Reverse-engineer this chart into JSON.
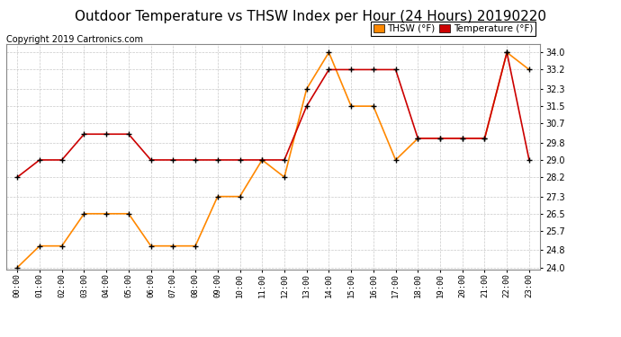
{
  "title": "Outdoor Temperature vs THSW Index per Hour (24 Hours) 20190220",
  "copyright": "Copyright 2019 Cartronics.com",
  "hours": [
    "00:00",
    "01:00",
    "02:00",
    "03:00",
    "04:00",
    "05:00",
    "06:00",
    "07:00",
    "08:00",
    "09:00",
    "10:00",
    "11:00",
    "12:00",
    "13:00",
    "14:00",
    "15:00",
    "16:00",
    "17:00",
    "18:00",
    "19:00",
    "20:00",
    "21:00",
    "22:00",
    "23:00"
  ],
  "temperature": [
    28.2,
    29.0,
    29.0,
    30.2,
    30.2,
    30.2,
    29.0,
    29.0,
    29.0,
    29.0,
    29.0,
    29.0,
    29.0,
    31.5,
    33.2,
    33.2,
    33.2,
    33.2,
    30.0,
    30.0,
    30.0,
    30.0,
    34.0,
    29.0
  ],
  "thsw": [
    24.0,
    25.0,
    25.0,
    26.5,
    26.5,
    26.5,
    25.0,
    25.0,
    25.0,
    27.3,
    27.3,
    29.0,
    28.2,
    32.3,
    34.0,
    31.5,
    31.5,
    29.0,
    30.0,
    30.0,
    30.0,
    30.0,
    34.0,
    33.2
  ],
  "temp_color": "#cc0000",
  "thsw_color": "#ff8800",
  "ylim_min": 24.0,
  "ylim_max": 34.4,
  "yticks": [
    24.0,
    24.8,
    25.7,
    26.5,
    27.3,
    28.2,
    29.0,
    29.8,
    30.7,
    31.5,
    32.3,
    33.2,
    34.0
  ],
  "title_fontsize": 11,
  "copyright_fontsize": 7,
  "legend_thsw_label": "THSW (°F)",
  "legend_temp_label": "Temperature (°F)",
  "background_color": "#ffffff",
  "grid_color": "#bbbbbb"
}
